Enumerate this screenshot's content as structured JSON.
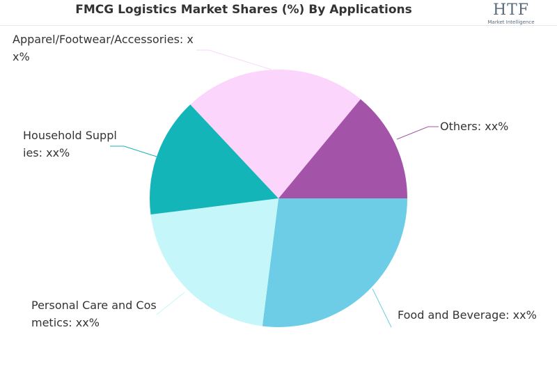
{
  "chart_data": {
    "type": "pie",
    "title": "FMCG Logistics Market Shares (%) By Applications",
    "categories": [
      "Food and Beverage: xx%",
      "Personal Care and Cosmetics: xx%",
      "Household Supplies: xx%",
      "Apparel/Footwear/Accessories: xx%",
      "Others: xx%"
    ],
    "values": [
      27,
      21,
      15,
      23,
      14
    ],
    "colors": [
      "#6dcde6",
      "#c4f6fa",
      "#14b5b9",
      "#fbd5fb",
      "#a454a8"
    ]
  },
  "logo": {
    "text": "HTF",
    "subtext": "Market Intelligence"
  }
}
